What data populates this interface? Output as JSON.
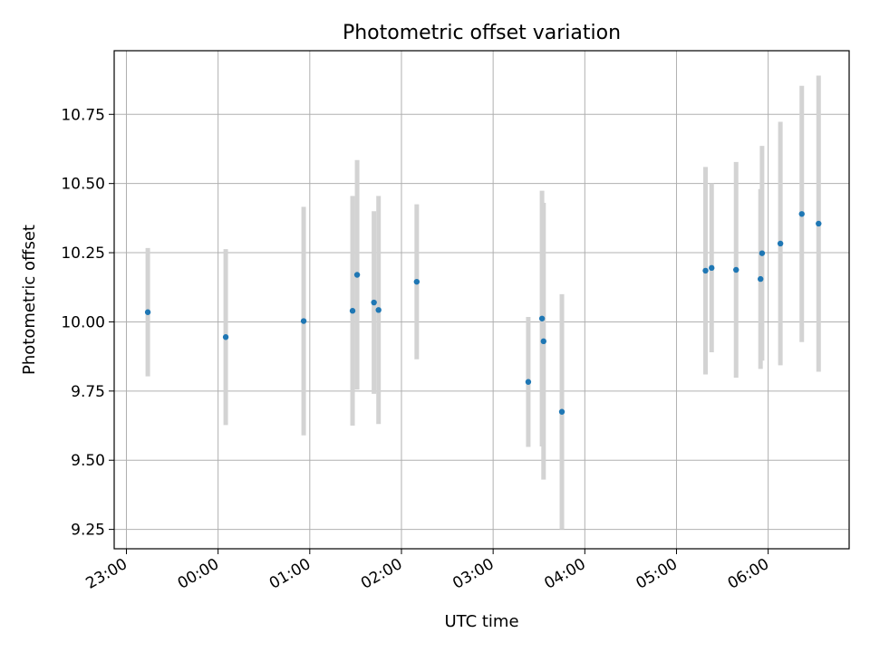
{
  "chart_data": {
    "type": "scatter",
    "title": "Photometric offset variation",
    "xlabel": "UTC time",
    "ylabel": "Photometric offset",
    "x_is_time": true,
    "xlim": [
      "22:52",
      "06:53"
    ],
    "ylim": [
      9.18,
      10.98
    ],
    "xticks": [
      "23:00",
      "00:00",
      "01:00",
      "02:00",
      "03:00",
      "04:00",
      "05:00",
      "06:00"
    ],
    "yticks": [
      9.25,
      9.5,
      9.75,
      10.0,
      10.25,
      10.5,
      10.75
    ],
    "ytick_labels": [
      "9.25",
      "9.50",
      "9.75",
      "10.00",
      "10.25",
      "10.50",
      "10.75"
    ],
    "grid": true,
    "legend": "none",
    "colors": {
      "point": "#1f77b4",
      "errorbar": "#d3d3d3",
      "grid": "#b0b0b0"
    },
    "series": [
      {
        "points": [
          {
            "x": "23:14",
            "y": 10.035,
            "err": 0.232
          },
          {
            "x": "00:05",
            "y": 9.945,
            "err": 0.318
          },
          {
            "x": "00:56",
            "y": 10.003,
            "err": 0.413
          },
          {
            "x": "01:28",
            "y": 10.04,
            "err": 0.415
          },
          {
            "x": "01:31",
            "y": 10.17,
            "err": 0.415
          },
          {
            "x": "01:42",
            "y": 10.07,
            "err": 0.33
          },
          {
            "x": "01:45",
            "y": 10.043,
            "err": 0.412
          },
          {
            "x": "02:10",
            "y": 10.145,
            "err": 0.28
          },
          {
            "x": "03:23",
            "y": 9.783,
            "err": 0.235
          },
          {
            "x": "03:32",
            "y": 10.012,
            "err": 0.462
          },
          {
            "x": "03:33",
            "y": 9.93,
            "err": 0.5
          },
          {
            "x": "03:45",
            "y": 9.675,
            "err": 0.425
          },
          {
            "x": "05:19",
            "y": 10.185,
            "err": 0.375
          },
          {
            "x": "05:23",
            "y": 10.195,
            "err": 0.305
          },
          {
            "x": "05:39",
            "y": 10.188,
            "err": 0.39
          },
          {
            "x": "05:55",
            "y": 10.155,
            "err": 0.325
          },
          {
            "x": "05:56",
            "y": 10.248,
            "err": 0.388
          },
          {
            "x": "06:08",
            "y": 10.283,
            "err": 0.44
          },
          {
            "x": "06:22",
            "y": 10.39,
            "err": 0.463
          },
          {
            "x": "06:33",
            "y": 10.355,
            "err": 0.535
          }
        ]
      }
    ]
  }
}
